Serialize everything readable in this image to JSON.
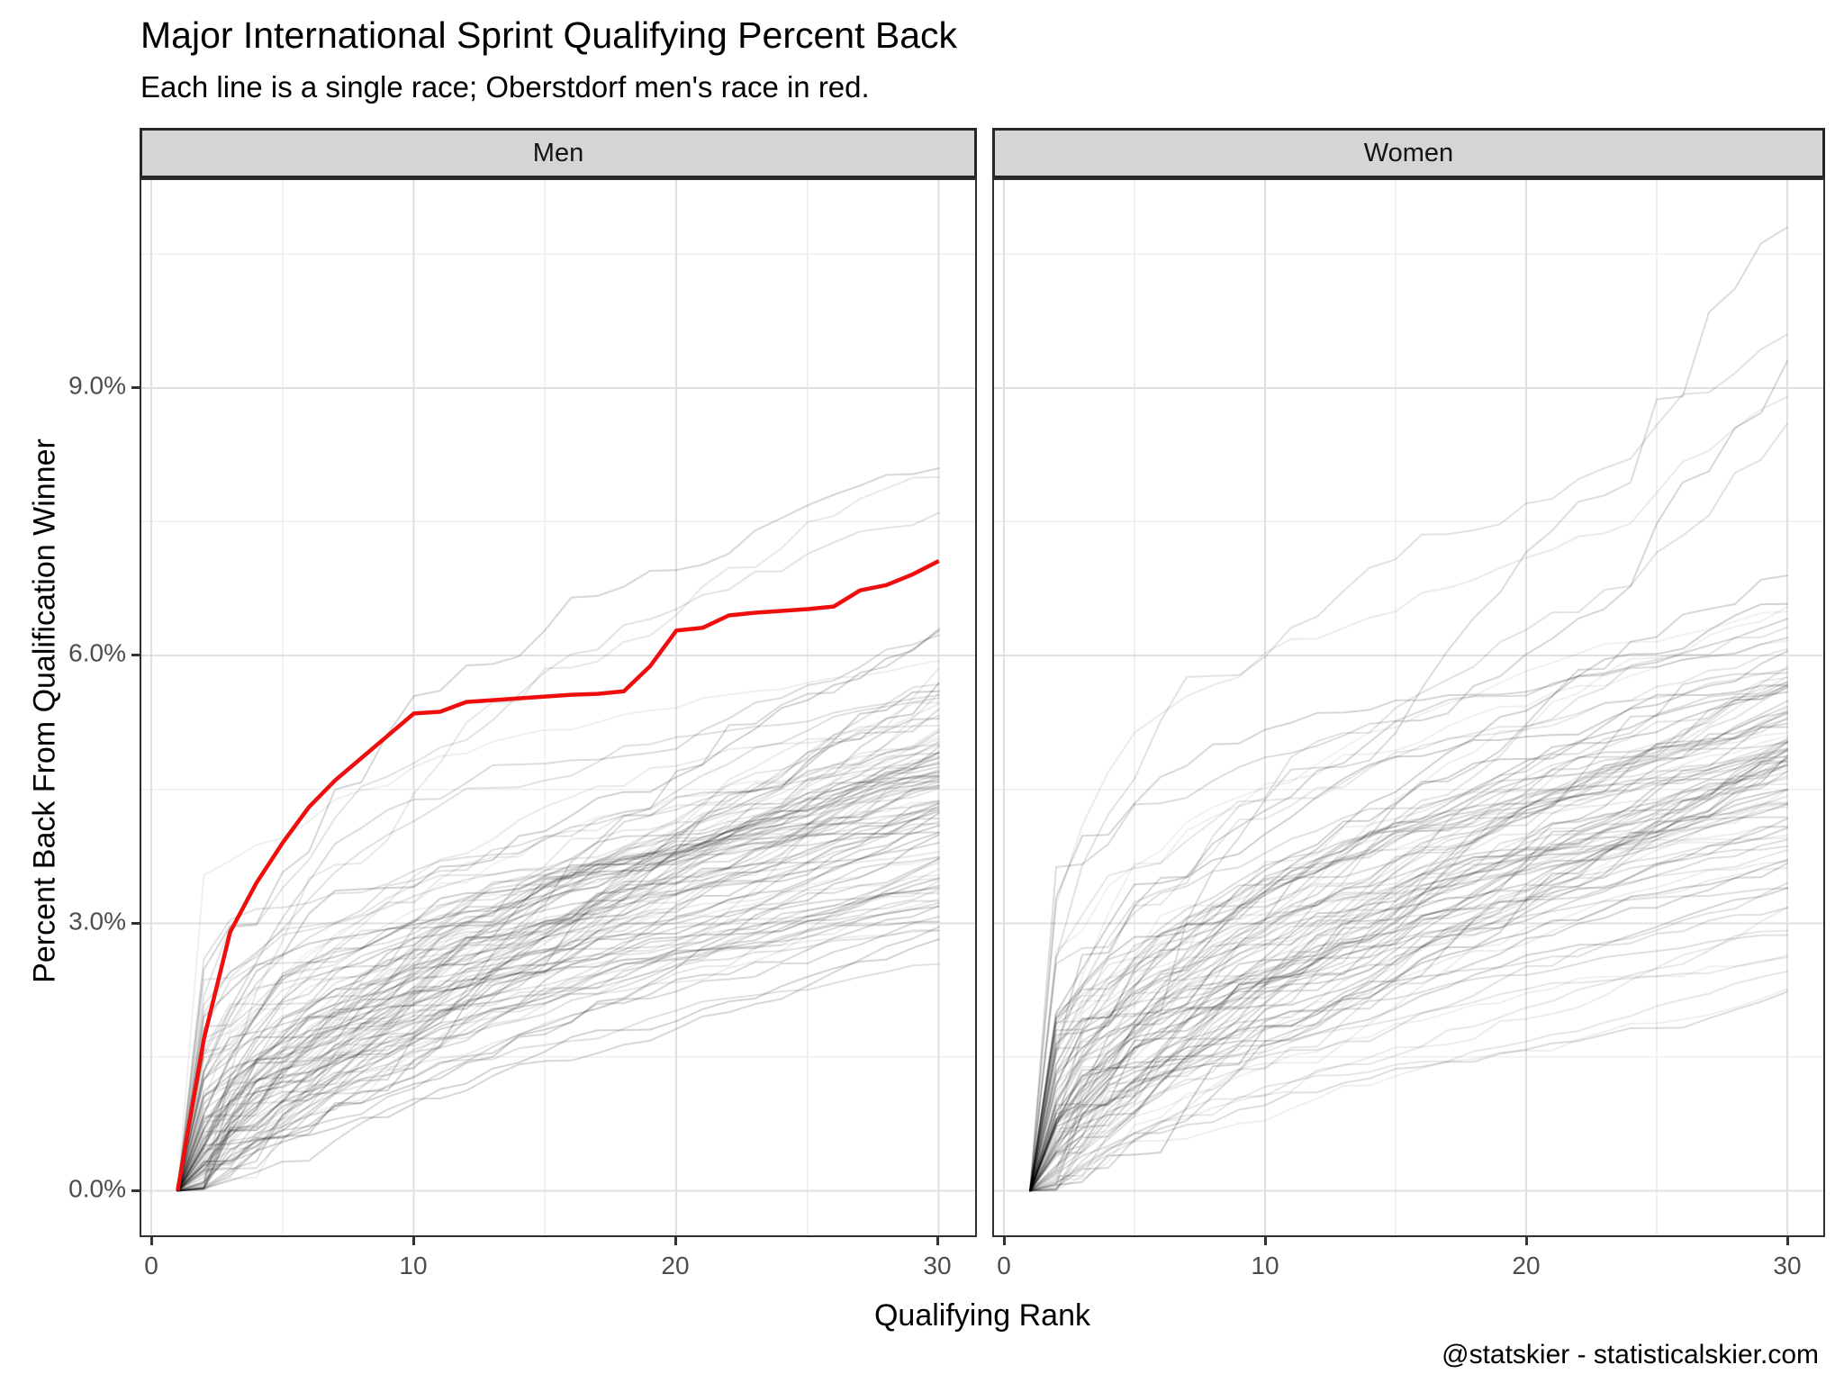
{
  "title": "Major International Sprint Qualifying Percent Back",
  "subtitle": "Each line is a single race; Oberstdorf men's race in red.",
  "caption": "@statskier - statisticalskier.com",
  "facets": [
    {
      "label": "Men"
    },
    {
      "label": "Women"
    }
  ],
  "x_axis": {
    "title": "Qualifying Rank",
    "tick_labels": [
      "0",
      "10",
      "20",
      "30"
    ],
    "tick_values": [
      0,
      10,
      20,
      30
    ],
    "minor_tick_values": [
      5,
      15,
      25
    ],
    "domain": [
      -0.45,
      31.45
    ]
  },
  "y_axis": {
    "title": "Percent Back From Qualification Winner",
    "ticks": [
      "0.0%",
      "3.0%",
      "6.0%",
      "9.0%"
    ],
    "tick_values": [
      0,
      3,
      6,
      9
    ],
    "minor_tick_values": [
      1.5,
      4.5,
      7.5,
      10.5
    ],
    "domain": [
      -0.52,
      11.35
    ]
  },
  "colors": {
    "highlight": "#ee0e0e",
    "background_line": "#000000",
    "grid_major": "#e0e0e0",
    "grid_minor": "#efefef",
    "panel_border": "#303030",
    "strip_fill": "#d5d5d5",
    "tick_label": "#4d4d4d"
  },
  "chart_data": {
    "type": "line",
    "x_ranks": [
      1,
      2,
      3,
      4,
      5,
      6,
      7,
      8,
      9,
      10,
      11,
      12,
      13,
      14,
      15,
      16,
      17,
      18,
      19,
      20,
      21,
      22,
      23,
      24,
      25,
      26,
      27,
      28,
      29,
      30
    ],
    "xlabel": "Qualifying Rank",
    "ylabel": "Percent Back From Qualification Winner",
    "highlighted_race": {
      "label": "Oberstdorf men's race",
      "facet": "Men",
      "percent_back": [
        0,
        1.7,
        2.9,
        3.45,
        3.9,
        4.3,
        4.6,
        4.85,
        5.1,
        5.35,
        5.37,
        5.48,
        5.5,
        5.52,
        5.54,
        5.56,
        5.57,
        5.6,
        5.88,
        6.28,
        6.31,
        6.45,
        6.48,
        6.5,
        6.52,
        6.55,
        6.73,
        6.79,
        6.91,
        7.06
      ]
    },
    "background_races": {
      "description": "Each translucent black line is one race; all start at 0% at qualifying rank 1 and rise monotonically. Individual values estimated from pixel density.",
      "men": {
        "count": 102,
        "final_min": 2.3,
        "final_max": 6.6,
        "high_outliers": [
          7.6,
          8.0,
          8.1
        ],
        "seed": 11
      },
      "women": {
        "count": 102,
        "final_min": 2.0,
        "final_max": 7.3,
        "high_outliers": [
          8.6,
          8.9,
          9.3,
          9.6,
          10.8
        ],
        "seed": 29
      },
      "style": {
        "alpha_range": [
          0.055,
          0.18
        ],
        "stroke_width": 2
      }
    }
  }
}
